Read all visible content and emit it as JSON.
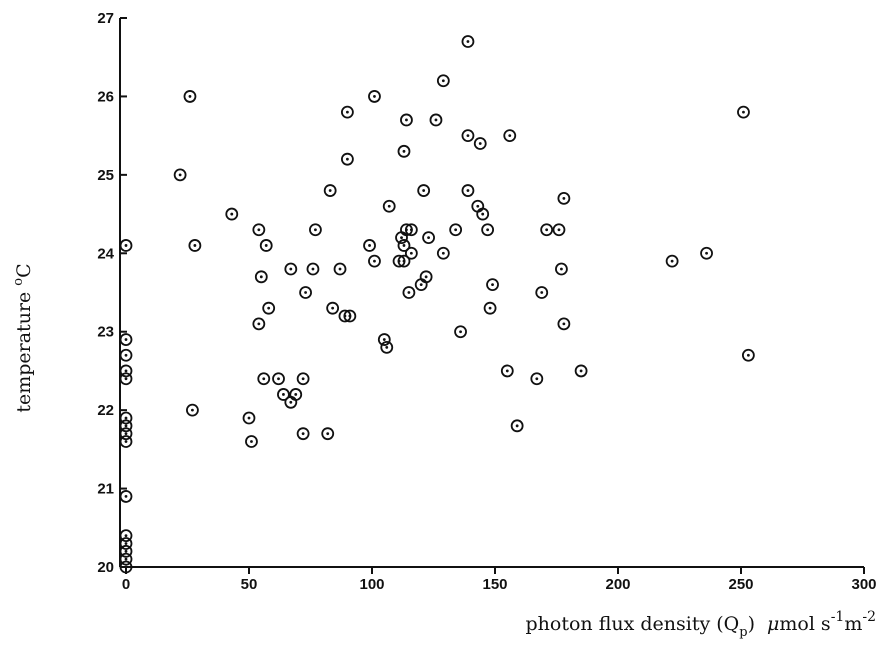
{
  "chart_data": {
    "type": "scatter",
    "title": "",
    "xlabel": "photon flux density (Q_p)  μmol s^-1 m^-2",
    "xlabel_parts": {
      "main": "photon flux density (Q",
      "sub_p": "p",
      "paren_close": ")",
      "mu": "μ",
      "unit": "mol s",
      "sup_neg1": "-1",
      "m": "m",
      "sup_neg2": "-2"
    },
    "ylabel": "temperature °C",
    "ylabel_parts": {
      "main": "temperature ",
      "degree": "o",
      "unit": "C"
    },
    "xlim": [
      0,
      300
    ],
    "ylim": [
      20,
      27
    ],
    "xticks": [
      "0",
      "50",
      "100",
      "150",
      "200",
      "250",
      "300"
    ],
    "yticks": [
      "20",
      "21",
      "22",
      "23",
      "24",
      "25",
      "26",
      "27"
    ],
    "grid": false,
    "marker": "circle-dot",
    "color": "#111111",
    "points": [
      [
        0,
        20.0
      ],
      [
        0,
        20.1
      ],
      [
        0,
        20.2
      ],
      [
        0,
        20.3
      ],
      [
        0,
        20.4
      ],
      [
        0,
        20.9
      ],
      [
        0,
        21.6
      ],
      [
        0,
        21.7
      ],
      [
        0,
        21.8
      ],
      [
        0,
        21.9
      ],
      [
        0,
        22.4
      ],
      [
        0,
        22.5
      ],
      [
        0,
        22.7
      ],
      [
        0,
        22.9
      ],
      [
        0,
        24.1
      ],
      [
        22,
        25.0
      ],
      [
        26,
        26.0
      ],
      [
        27,
        22.0
      ],
      [
        28,
        24.1
      ],
      [
        43,
        24.5
      ],
      [
        50,
        21.9
      ],
      [
        51,
        21.6
      ],
      [
        54,
        23.1
      ],
      [
        54,
        24.3
      ],
      [
        55,
        23.7
      ],
      [
        56,
        22.4
      ],
      [
        57,
        24.1
      ],
      [
        58,
        23.3
      ],
      [
        62,
        22.4
      ],
      [
        64,
        22.2
      ],
      [
        67,
        22.1
      ],
      [
        67,
        23.8
      ],
      [
        69,
        22.2
      ],
      [
        72,
        22.4
      ],
      [
        72,
        21.7
      ],
      [
        73,
        23.5
      ],
      [
        76,
        23.8
      ],
      [
        77,
        24.3
      ],
      [
        82,
        21.7
      ],
      [
        83,
        24.8
      ],
      [
        84,
        23.3
      ],
      [
        87,
        23.8
      ],
      [
        89,
        23.2
      ],
      [
        90,
        25.8
      ],
      [
        90,
        25.2
      ],
      [
        91,
        23.2
      ],
      [
        99,
        24.1
      ],
      [
        101,
        26.0
      ],
      [
        101,
        23.9
      ],
      [
        105,
        22.9
      ],
      [
        106,
        22.8
      ],
      [
        107,
        24.6
      ],
      [
        111,
        23.9
      ],
      [
        112,
        24.2
      ],
      [
        113,
        24.1
      ],
      [
        113,
        23.9
      ],
      [
        113,
        25.3
      ],
      [
        114,
        25.7
      ],
      [
        114,
        24.3
      ],
      [
        115,
        23.5
      ],
      [
        116,
        24.3
      ],
      [
        116,
        24.0
      ],
      [
        120,
        23.6
      ],
      [
        121,
        24.8
      ],
      [
        122,
        23.7
      ],
      [
        123,
        24.2
      ],
      [
        126,
        25.7
      ],
      [
        129,
        26.2
      ],
      [
        129,
        24.0
      ],
      [
        134,
        24.3
      ],
      [
        136,
        23.0
      ],
      [
        139,
        26.7
      ],
      [
        139,
        25.5
      ],
      [
        139,
        24.8
      ],
      [
        143,
        24.6
      ],
      [
        144,
        25.4
      ],
      [
        145,
        24.5
      ],
      [
        147,
        24.3
      ],
      [
        148,
        23.3
      ],
      [
        149,
        23.6
      ],
      [
        155,
        22.5
      ],
      [
        156,
        25.5
      ],
      [
        159,
        21.8
      ],
      [
        167,
        22.4
      ],
      [
        169,
        23.5
      ],
      [
        171,
        24.3
      ],
      [
        176,
        24.3
      ],
      [
        177,
        23.8
      ],
      [
        178,
        24.7
      ],
      [
        178,
        23.1
      ],
      [
        185,
        22.5
      ],
      [
        222,
        23.9
      ],
      [
        236,
        24.0
      ],
      [
        251,
        25.8
      ],
      [
        253,
        22.7
      ]
    ]
  }
}
